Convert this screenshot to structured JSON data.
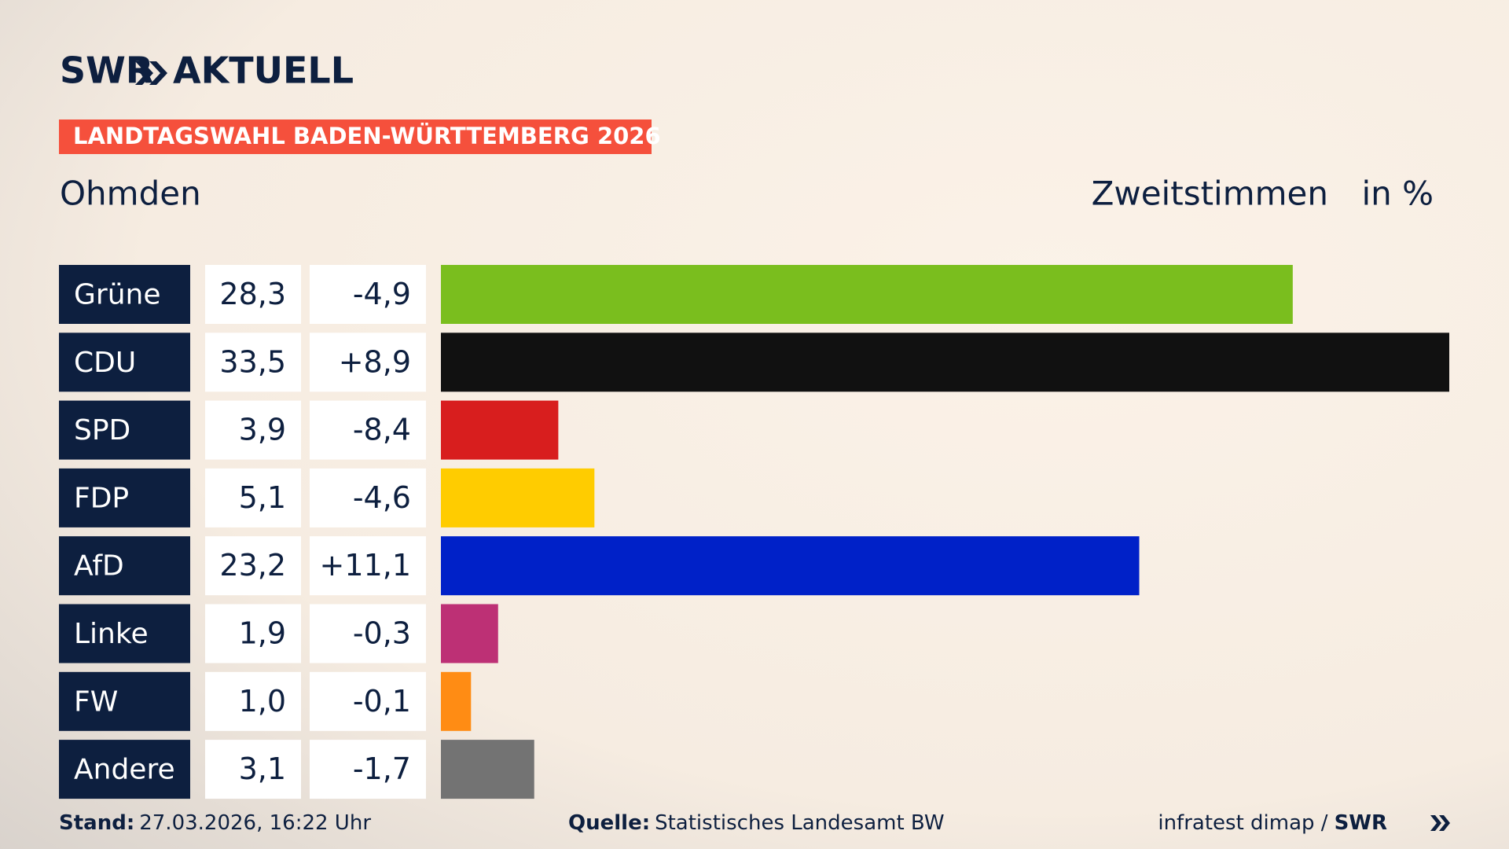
{
  "chart_data": {
    "type": "bar",
    "brand": "SWR",
    "brand_suffix": "AKTUELL",
    "banner": "LANDTAGSWAHL BADEN-WÜRTTEMBERG 2026",
    "title": "Ohmden",
    "subtitle": "Zweitstimmen",
    "unit": "in %",
    "categories": [
      "Grüne",
      "CDU",
      "SPD",
      "FDP",
      "AfD",
      "Linke",
      "FW",
      "Andere"
    ],
    "values": [
      28.3,
      33.5,
      3.9,
      5.1,
      23.2,
      1.9,
      1.0,
      3.1
    ],
    "value_labels": [
      "28,3",
      "33,5",
      "3,9",
      "5,1",
      "23,2",
      "1,9",
      "1,0",
      "3,1"
    ],
    "changes": [
      -4.9,
      8.9,
      -8.4,
      -4.6,
      11.1,
      -0.3,
      -0.1,
      -1.7
    ],
    "change_labels": [
      "-4,9",
      "+8,9",
      "-8,4",
      "-4,6",
      "+11,1",
      "-0,3",
      "-0,1",
      "-1,7"
    ],
    "colors": [
      "#7abe1e",
      "#111111",
      "#d81e1e",
      "#ffcc00",
      "#0021c8",
      "#bd3075",
      "#ff8c14",
      "#737373"
    ],
    "footer": {
      "stand_label": "Stand:",
      "stand": "27.03.2026, 16:22 Uhr",
      "source_label": "Quelle:",
      "source": "Statistisches Landesamt BW",
      "credit": "infratest dimap /",
      "credit_brand": "SWR"
    }
  }
}
